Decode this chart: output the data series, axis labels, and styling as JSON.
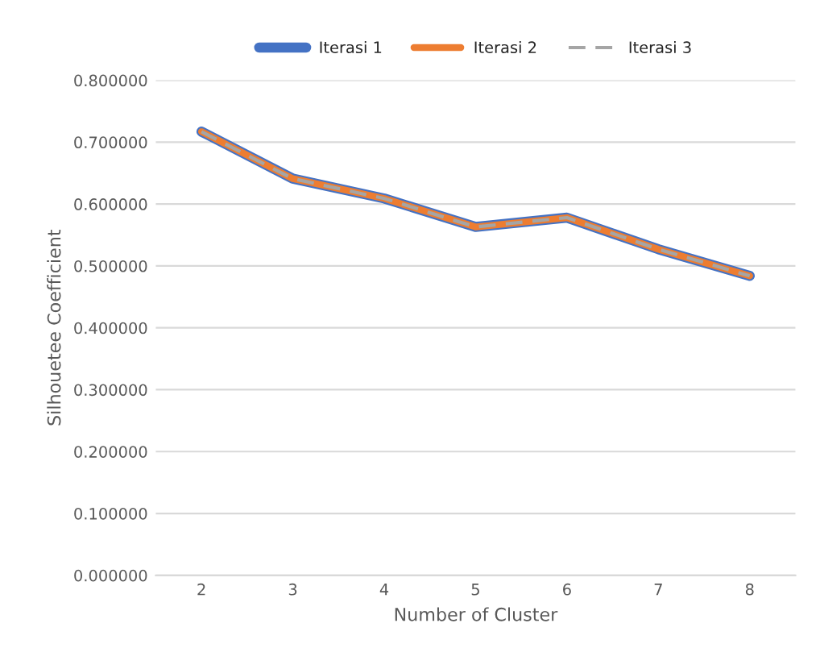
{
  "chart_data": {
    "type": "line",
    "xlabel": "Number of Cluster",
    "ylabel": "Silhouetee Coefficient",
    "categories": [
      "2",
      "3",
      "4",
      "5",
      "6",
      "7",
      "8"
    ],
    "series": [
      {
        "name": "Iterasi 1",
        "color": "#4472c4",
        "values": [
          0.717,
          0.641,
          0.609,
          0.563,
          0.578,
          0.527,
          0.484
        ]
      },
      {
        "name": "Iterasi 2",
        "color": "#ed7d31",
        "values": [
          0.717,
          0.641,
          0.609,
          0.563,
          0.578,
          0.527,
          0.484
        ]
      },
      {
        "name": "Iterasi 3",
        "color": "#a5a5a5",
        "line_style": "dashed",
        "values": [
          0.717,
          0.641,
          0.609,
          0.563,
          0.578,
          0.527,
          0.484
        ]
      }
    ],
    "ylim": [
      0,
      0.8
    ],
    "yticks": [
      {
        "value": 0,
        "label": "0.000000"
      },
      {
        "value": 0.1,
        "label": "0.100000"
      },
      {
        "value": 0.2,
        "label": "0.200000"
      },
      {
        "value": 0.3,
        "label": "0.300000"
      },
      {
        "value": 0.4,
        "label": "0.400000"
      },
      {
        "value": 0.5,
        "label": "0.500000"
      },
      {
        "value": 0.6,
        "label": "0.600000"
      },
      {
        "value": 0.7,
        "label": "0.700000"
      },
      {
        "value": 0.8,
        "label": "0.800000"
      }
    ],
    "grid": "y",
    "legend": "top",
    "marker": "none",
    "line_style": "solid"
  }
}
